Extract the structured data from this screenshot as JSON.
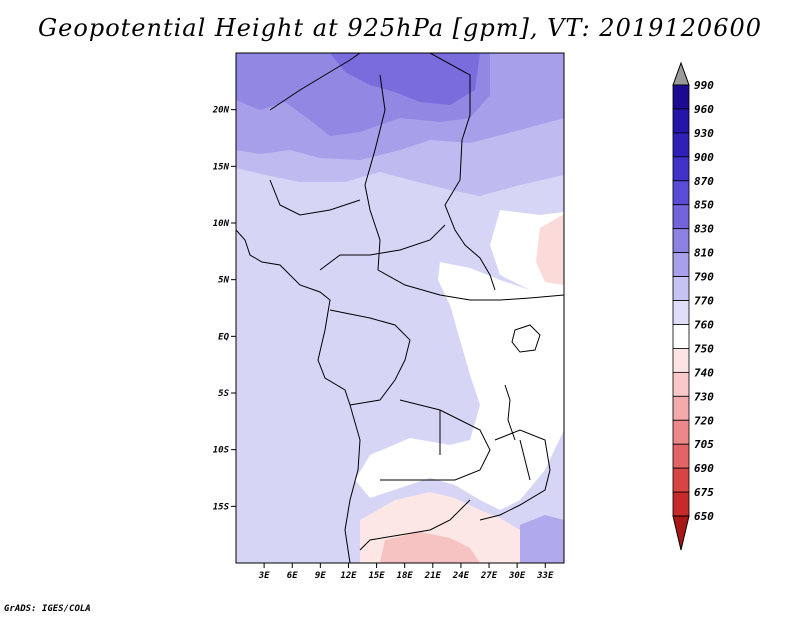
{
  "title": "Geopotential Height at 925hPa [gpm], VT: 2019120600",
  "credit": "GrADS: IGES/COLA",
  "map": {
    "x_ticks": [
      "3E",
      "6E",
      "9E",
      "12E",
      "15E",
      "18E",
      "21E",
      "24E",
      "27E",
      "30E",
      "33E"
    ],
    "x_tick_values": [
      3,
      6,
      9,
      12,
      15,
      18,
      21,
      24,
      27,
      30,
      33
    ],
    "y_ticks": [
      "20N",
      "15N",
      "10N",
      "5N",
      "EQ",
      "5S",
      "10S",
      "15S"
    ],
    "y_tick_values": [
      20,
      15,
      10,
      5,
      0,
      -5,
      -10,
      -15
    ],
    "lon_range": [
      0,
      35
    ],
    "lat_range": [
      -20,
      25
    ]
  },
  "colorbar": {
    "labels": [
      "990",
      "960",
      "930",
      "900",
      "870",
      "850",
      "830",
      "810",
      "790",
      "770",
      "760",
      "750",
      "740",
      "730",
      "720",
      "705",
      "690",
      "675",
      "650"
    ],
    "colors": [
      "#1c0a90",
      "#2515a8",
      "#3020b8",
      "#4232c8",
      "#5a4cd6",
      "#7464dc",
      "#8c82e2",
      "#a8a0ea",
      "#c6c2f2",
      "#e0ddf8",
      "#ffffff",
      "#fde4e4",
      "#f9c8c8",
      "#f3aaaa",
      "#ec8888",
      "#e36464",
      "#d84444",
      "#c62a2a",
      "#a81616"
    ],
    "top_arrow_color": "#9a9a9a"
  }
}
